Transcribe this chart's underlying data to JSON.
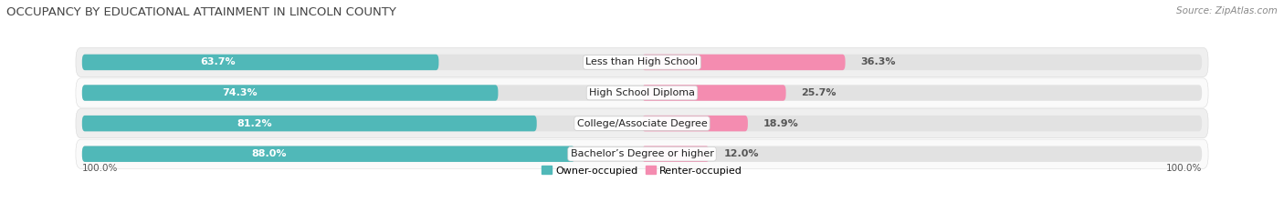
{
  "title": "OCCUPANCY BY EDUCATIONAL ATTAINMENT IN LINCOLN COUNTY",
  "source": "Source: ZipAtlas.com",
  "categories": [
    "Less than High School",
    "High School Diploma",
    "College/Associate Degree",
    "Bachelor’s Degree or higher"
  ],
  "owner_values": [
    63.7,
    74.3,
    81.2,
    88.0
  ],
  "renter_values": [
    36.3,
    25.7,
    18.9,
    12.0
  ],
  "owner_color": "#50b8b8",
  "renter_color": "#f48cb0",
  "row_bg_color_odd": "#efefef",
  "row_bg_color_even": "#fafafa",
  "pill_bg_color": "#e2e2e2",
  "owner_label": "Owner-occupied",
  "renter_label": "Renter-occupied",
  "title_fontsize": 9.5,
  "label_fontsize": 8.0,
  "cat_fontsize": 8.0,
  "tick_fontsize": 7.5,
  "source_fontsize": 7.5,
  "bar_height": 0.52,
  "figsize": [
    14.06,
    2.33
  ],
  "dpi": 100,
  "left_axis_label": "100.0%",
  "right_axis_label": "100.0%",
  "background_color": "#ffffff"
}
